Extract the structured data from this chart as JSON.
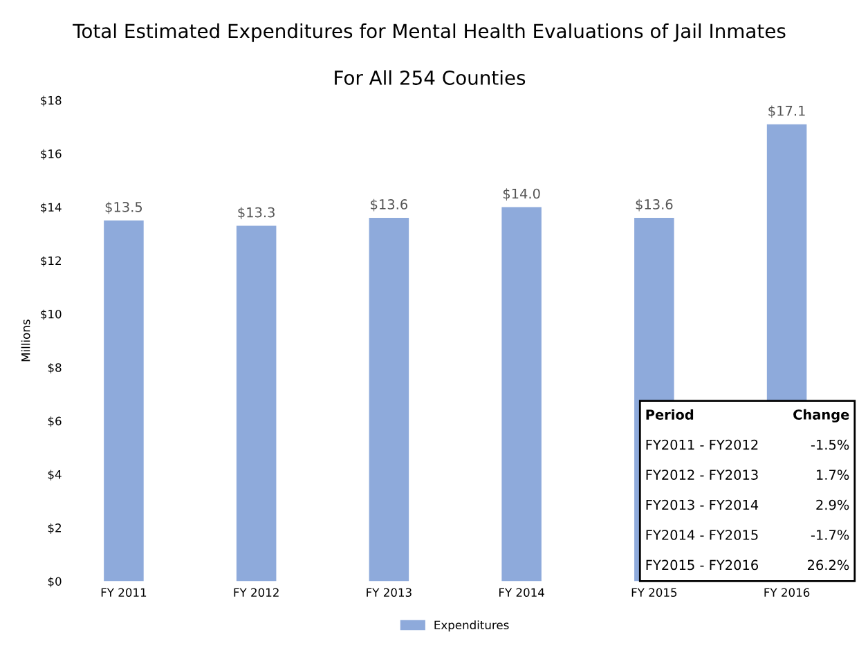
{
  "chart_data": {
    "type": "bar",
    "title": "Total Estimated Expenditures for Mental Health Evaluations of Jail Inmates",
    "subtitle": "For All 254 Counties",
    "ylabel": "Millions",
    "categories": [
      "FY 2011",
      "FY 2012",
      "FY 2013",
      "FY 2014",
      "FY 2015",
      "FY 2016"
    ],
    "series": [
      {
        "name": "Expenditures",
        "color": "#8eaadb",
        "values": [
          13.5,
          13.3,
          13.6,
          14.0,
          13.6,
          17.1
        ]
      }
    ],
    "value_labels": [
      "$13.5",
      "$13.3",
      "$13.6",
      "$14.0",
      "$13.6",
      "$17.1"
    ],
    "ylim": [
      0,
      18
    ],
    "yticks": [
      {
        "value": 0,
        "label": "$0"
      },
      {
        "value": 2,
        "label": "$2"
      },
      {
        "value": 4,
        "label": "$4"
      },
      {
        "value": 6,
        "label": "$6"
      },
      {
        "value": 8,
        "label": "$8"
      },
      {
        "value": 10,
        "label": "$10"
      },
      {
        "value": 12,
        "label": "$12"
      },
      {
        "value": 14,
        "label": "$14"
      },
      {
        "value": 16,
        "label": "$16"
      },
      {
        "value": 18,
        "label": "$18"
      }
    ],
    "grid": false,
    "legend": "bottom",
    "annotations": [
      "Period",
      "Change",
      "FY2011 - FY2012",
      "-1.5%",
      "FY2012 - FY2013",
      "1.7%",
      "FY2013 - FY2014",
      "2.9%",
      "FY2014 - FY2015",
      "-1.7%",
      "FY2015 - FY2016",
      "26.2%"
    ]
  }
}
